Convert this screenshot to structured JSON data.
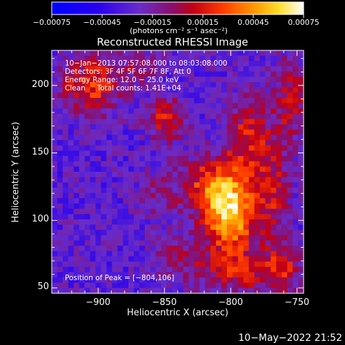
{
  "chart_data": {
    "type": "heatmap",
    "title": "Reconstructed RHESSI Image",
    "xlabel": "Heliocentric X (arcsec)",
    "ylabel": "Heliocentric Y (arcsec)",
    "xlim": [
      -935,
      -745
    ],
    "ylim": [
      46,
      226
    ],
    "xticks": [
      -900,
      -850,
      -800,
      -750
    ],
    "xtick_labels": [
      "−900",
      "−850",
      "−800",
      "−750"
    ],
    "yticks": [
      50,
      100,
      150,
      200
    ],
    "ytick_labels": [
      "50",
      "100",
      "150",
      "200"
    ],
    "colorbar": {
      "range": [
        -0.00075,
        0.00075
      ],
      "ticks": [
        -0.00075,
        -0.00045,
        -0.00015,
        0.00015,
        0.00045,
        0.00075
      ],
      "tick_labels": [
        "−0.00075",
        "−0.00045",
        "−0.00015",
        "0.00015",
        "0.00045",
        "0.00075"
      ],
      "units": "(photons cm⁻² s⁻¹ asec⁻²)",
      "colormap": "blue-purple-red-orange-yellow-white"
    },
    "info_lines": [
      "10−Jan−2013 07:57:08.000 to 08:03:08.000",
      "Detectors: 3F 4F 5F 6F 7F 8F, Att 0",
      "Energy Range: 12.0 − 25.0 keV",
      "Clean     Total counts: 1.41E+04"
    ],
    "peak": {
      "x": -804,
      "y": 106
    },
    "peak_label": "Position of Peak = [−804,106]",
    "footer_date": "10−May−2022 21:52",
    "sources": [
      {
        "x": -800,
        "y": 103,
        "amp": 0.00078,
        "sx": 13,
        "sy": 20
      },
      {
        "x": -815,
        "y": 125,
        "amp": 0.0005,
        "sx": 16,
        "sy": 16
      },
      {
        "x": -787,
        "y": 160,
        "amp": 0.00042,
        "sx": 11,
        "sy": 22
      },
      {
        "x": -768,
        "y": 120,
        "amp": 0.00036,
        "sx": 9,
        "sy": 28
      },
      {
        "x": -755,
        "y": 190,
        "amp": 0.00035,
        "sx": 9,
        "sy": 22
      },
      {
        "x": -848,
        "y": 175,
        "amp": 0.00044,
        "sx": 10,
        "sy": 11
      },
      {
        "x": -905,
        "y": 200,
        "amp": 0.0005,
        "sx": 16,
        "sy": 15
      },
      {
        "x": -855,
        "y": 120,
        "amp": 0.00018,
        "sx": 10,
        "sy": 12
      },
      {
        "x": -790,
        "y": 62,
        "amp": 0.00035,
        "sx": 25,
        "sy": 12
      },
      {
        "x": -840,
        "y": 72,
        "amp": 0.00022,
        "sx": 14,
        "sy": 10
      },
      {
        "x": -760,
        "y": 65,
        "amp": 0.00028,
        "sx": 8,
        "sy": 12
      },
      {
        "x": -870,
        "y": 215,
        "amp": 0.00022,
        "sx": 12,
        "sy": 9
      }
    ],
    "background_level": -0.00028
  }
}
